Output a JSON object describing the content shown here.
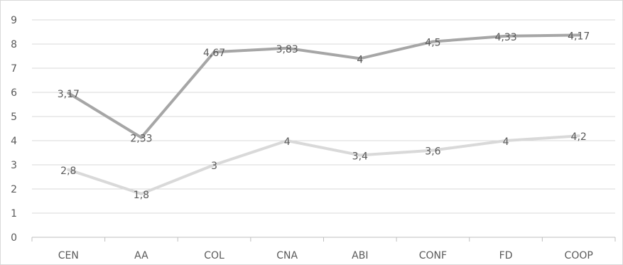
{
  "chart_data": {
    "type": "line",
    "categories": [
      "CEN",
      "AA",
      "COL",
      "CNA",
      "ABI",
      "CONF",
      "FD",
      "COOP"
    ],
    "ylim": [
      0,
      9
    ],
    "yticks": [
      0,
      1,
      2,
      3,
      4,
      5,
      6,
      7,
      8,
      9
    ],
    "grid": true,
    "legend": "none",
    "series": [
      {
        "values": [
          5.97,
          4.13,
          7.67,
          7.83,
          7.4,
          8.1,
          8.33,
          8.37
        ],
        "labels": [
          "3,17",
          "2,33",
          "4,67",
          "3,83",
          "4",
          "4,5",
          "4,33",
          "4,17"
        ],
        "color": "#a6a6a6"
      },
      {
        "values": [
          2.8,
          1.8,
          3.0,
          4.0,
          3.4,
          3.6,
          4.0,
          4.2
        ],
        "labels": [
          "2,8",
          "1,8",
          "3",
          "4",
          "3,4",
          "3,6",
          "4",
          "4,2"
        ],
        "color": "#d9d9d9"
      }
    ]
  }
}
